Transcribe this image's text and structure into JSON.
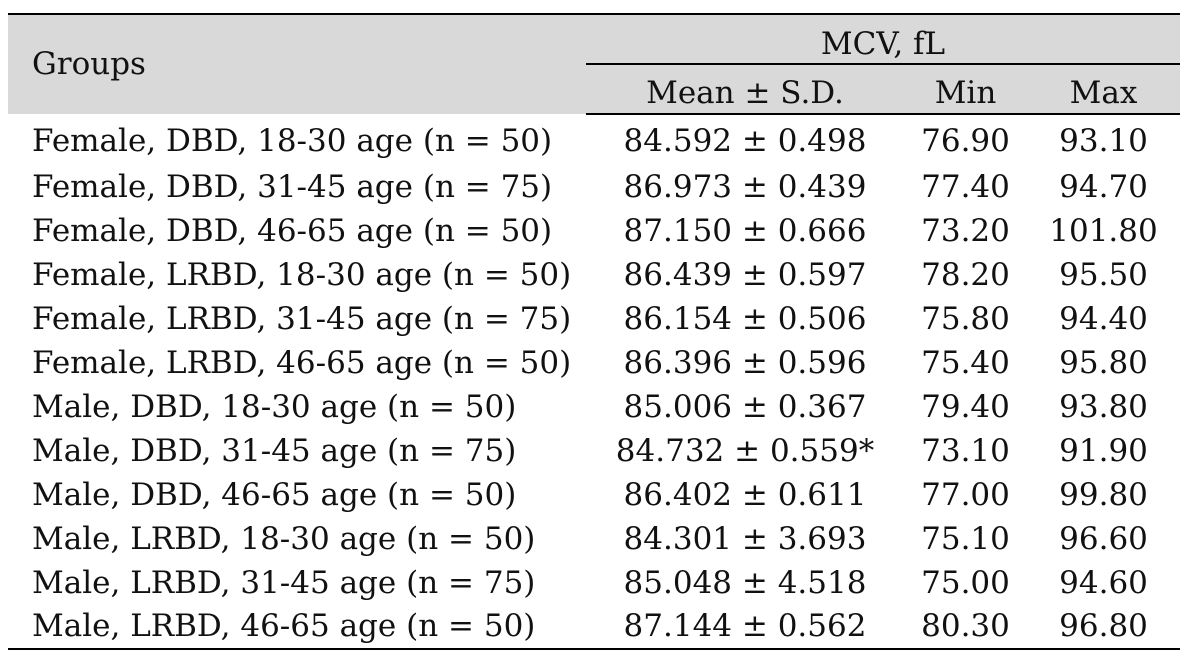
{
  "table": {
    "header": {
      "groups": "Groups",
      "measure": "MCV, fL",
      "mean": "Mean ± S.D.",
      "min": "Min",
      "max": "Max"
    },
    "rows": [
      {
        "group": "Female, DBD, 18-30 age (n = 50)",
        "mean": "84.592 ± 0.498",
        "min": "76.90",
        "max": "93.10"
      },
      {
        "group": "Female, DBD, 31-45 age (n = 75)",
        "mean": "86.973 ± 0.439",
        "min": "77.40",
        "max": "94.70"
      },
      {
        "group": "Female, DBD, 46-65 age (n = 50)",
        "mean": "87.150 ± 0.666",
        "min": "73.20",
        "max": "101.80"
      },
      {
        "group": "Female, LRBD, 18-30 age (n = 50)",
        "mean": "86.439 ± 0.597",
        "min": "78.20",
        "max": "95.50"
      },
      {
        "group": "Female, LRBD, 31-45 age (n = 75)",
        "mean": "86.154 ± 0.506",
        "min": "75.80",
        "max": "94.40"
      },
      {
        "group": "Female, LRBD, 46-65 age (n = 50)",
        "mean": "86.396 ± 0.596",
        "min": "75.40",
        "max": "95.80"
      },
      {
        "group": "Male, DBD, 18-30 age (n = 50)",
        "mean": "85.006 ± 0.367",
        "min": "79.40",
        "max": "93.80"
      },
      {
        "group": "Male, DBD, 31-45 age (n = 75)",
        "mean": "84.732 ± 0.559*",
        "min": "73.10",
        "max": "91.90"
      },
      {
        "group": "Male, DBD, 46-65 age (n = 50)",
        "mean": "86.402 ± 0.611",
        "min": "77.00",
        "max": "99.80"
      },
      {
        "group": "Male, LRBD, 18-30 age (n = 50)",
        "mean": "84.301 ± 3.693",
        "min": "75.10",
        "max": "96.60"
      },
      {
        "group": "Male, LRBD, 31-45 age (n = 75)",
        "mean": "85.048 ± 4.518",
        "min": "75.00",
        "max": "94.60"
      },
      {
        "group": "Male, LRBD, 46-65 age (n = 50)",
        "mean": "87.144 ± 0.562",
        "min": "80.30",
        "max": "96.80"
      }
    ]
  }
}
